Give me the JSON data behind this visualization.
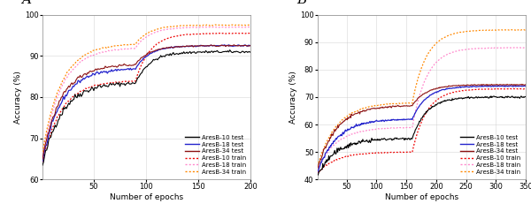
{
  "panel_A": {
    "label": "A",
    "xlabel": "Number of epochs",
    "ylabel": "Accuracy (%)",
    "xlim": [
      1,
      200
    ],
    "ylim": [
      60,
      100
    ],
    "yticks": [
      60,
      70,
      80,
      90,
      100
    ],
    "xticks": [
      50,
      100,
      150,
      200
    ],
    "epochs": 200,
    "lr_drop": 90,
    "test_10_start": 62,
    "test_10_plateau1": 83.5,
    "test_10_plateau2": 91.0,
    "test_18_start": 63,
    "test_18_plateau1": 87.0,
    "test_18_plateau2": 92.5,
    "test_34_start": 64,
    "test_34_plateau1": 88.0,
    "test_34_plateau2": 92.5,
    "train_10_start": 63,
    "train_10_plateau1": 84.0,
    "train_10_plateau2": 95.5,
    "train_18_start": 64,
    "train_18_plateau1": 92.0,
    "train_18_plateau2": 97.0,
    "train_34_start": 65,
    "train_34_plateau1": 93.0,
    "train_34_plateau2": 97.5
  },
  "panel_B": {
    "label": "B",
    "xlabel": "Number of epochs",
    "ylabel": "Accuracy (%)",
    "xlim": [
      1,
      350
    ],
    "ylim": [
      40,
      100
    ],
    "yticks": [
      40,
      50,
      60,
      70,
      80,
      90,
      100
    ],
    "xticks": [
      50,
      100,
      150,
      200,
      250,
      300,
      350
    ],
    "epochs": 350,
    "lr_drop": 160,
    "test_10_start": 41,
    "test_10_plateau1": 55.0,
    "test_10_plateau2": 70.0,
    "test_18_start": 42,
    "test_18_plateau1": 62.0,
    "test_18_plateau2": 74.0,
    "test_34_start": 43,
    "test_34_plateau1": 67.0,
    "test_34_plateau2": 74.5,
    "train_10_start": 42,
    "train_10_plateau1": 50.0,
    "train_10_plateau2": 73.0,
    "train_18_start": 43,
    "train_18_plateau1": 59.0,
    "train_18_plateau2": 88.0,
    "train_34_start": 44,
    "train_34_plateau1": 68.0,
    "train_34_plateau2": 94.5
  },
  "colors": {
    "test_10": "#000000",
    "test_18": "#2222cc",
    "test_34": "#8b1010",
    "train_10": "#ee0000",
    "train_18": "#ff88cc",
    "train_34": "#ff8800"
  },
  "legend_labels": {
    "test_10": "AresB-10 test",
    "test_18": "AresB-18 test",
    "test_34": "AresB-34 test",
    "train_10": "AresB-10 train",
    "train_18": "AresB-18 train",
    "train_34": "AresB-34 train"
  },
  "bg_color": "#ffffff",
  "grid_color": "#cccccc"
}
